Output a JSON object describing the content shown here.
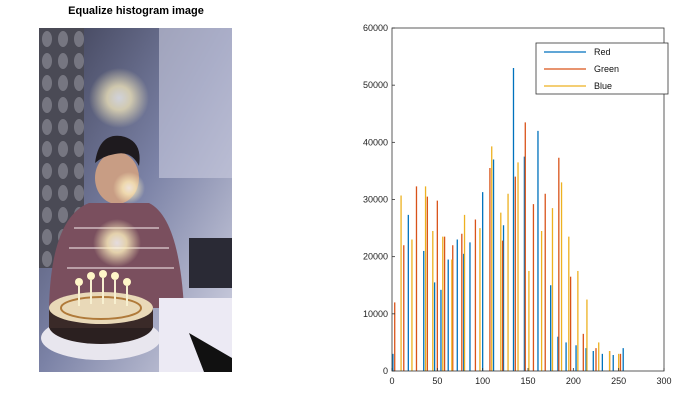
{
  "photo": {
    "title": "Equalize histogram image",
    "description_icon": "equalized-photo"
  },
  "chart_data": {
    "type": "bar",
    "title": "",
    "xlabel": "",
    "ylabel": "",
    "xlim": [
      0,
      300
    ],
    "ylim": [
      0,
      60000
    ],
    "xticks": [
      0,
      50,
      100,
      150,
      200,
      250,
      300
    ],
    "yticks": [
      0,
      10000,
      20000,
      30000,
      40000,
      50000,
      60000
    ],
    "grid": false,
    "legend_placement": "top-right",
    "series": [
      {
        "name": "Red",
        "color": "#0072BD",
        "x": [
          1,
          18,
          35,
          47,
          54,
          62,
          72,
          79,
          86,
          100,
          112,
          123,
          134,
          146,
          161,
          175,
          183,
          192,
          203,
          214,
          222,
          232,
          244,
          255
        ],
        "values": [
          3000,
          27300,
          21000,
          15500,
          14200,
          19500,
          23000,
          20500,
          22500,
          31300,
          37000,
          25500,
          53000,
          37500,
          42000,
          15000,
          6000,
          5000,
          4500,
          4000,
          3500,
          3000,
          2800,
          4000
        ]
      },
      {
        "name": "Green",
        "color": "#D95319",
        "x": [
          3,
          13,
          27,
          39,
          50,
          58,
          67,
          77,
          92,
          108,
          122,
          136,
          147,
          156,
          169,
          184,
          197,
          211,
          225,
          240,
          252
        ],
        "values": [
          12000,
          22000,
          32300,
          30500,
          29800,
          23500,
          22000,
          24000,
          26500,
          35500,
          22800,
          34000,
          43500,
          29200,
          31000,
          37300,
          16500,
          6500,
          4000,
          3500,
          3000
        ]
      },
      {
        "name": "Blue",
        "color": "#EDB120",
        "x": [
          10,
          22,
          37,
          45,
          56,
          66,
          80,
          97,
          110,
          120,
          128,
          139,
          151,
          165,
          177,
          187,
          195,
          205,
          215,
          228,
          240,
          250
        ],
        "values": [
          30700,
          23000,
          32300,
          24500,
          23500,
          19500,
          27300,
          25000,
          39300,
          27700,
          31000,
          36500,
          17500,
          24500,
          28500,
          33000,
          23500,
          17500,
          12500,
          5000,
          3500,
          3000
        ]
      }
    ]
  }
}
